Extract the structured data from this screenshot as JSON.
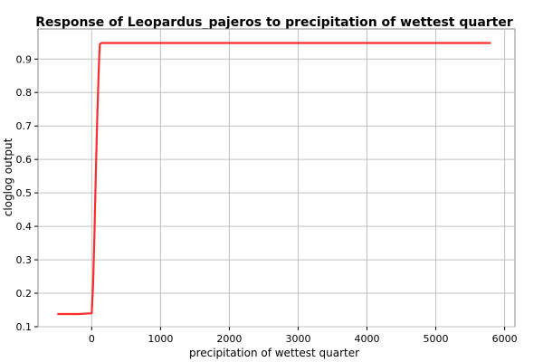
{
  "chart_data": {
    "type": "line",
    "title": "Response of Leopardus_pajeros to precipitation of wettest quarter",
    "xlabel": "precipitation of wettest quarter",
    "ylabel": "cloglog output",
    "xlim": [
      -780,
      6150
    ],
    "ylim": [
      0.1,
      0.99
    ],
    "xticks": [
      0,
      1000,
      2000,
      3000,
      4000,
      5000,
      6000
    ],
    "yticks": [
      0.1,
      0.2,
      0.3,
      0.4,
      0.5,
      0.6,
      0.7,
      0.8,
      0.9
    ],
    "grid": true,
    "series": [
      {
        "color": "#ff2a2a",
        "x": [
          -500,
          -200,
          0,
          20,
          40,
          60,
          80,
          100,
          110,
          120,
          140,
          5800
        ],
        "y": [
          0.138,
          0.138,
          0.14,
          0.22,
          0.38,
          0.56,
          0.72,
          0.85,
          0.91,
          0.945,
          0.948,
          0.948
        ]
      }
    ]
  }
}
